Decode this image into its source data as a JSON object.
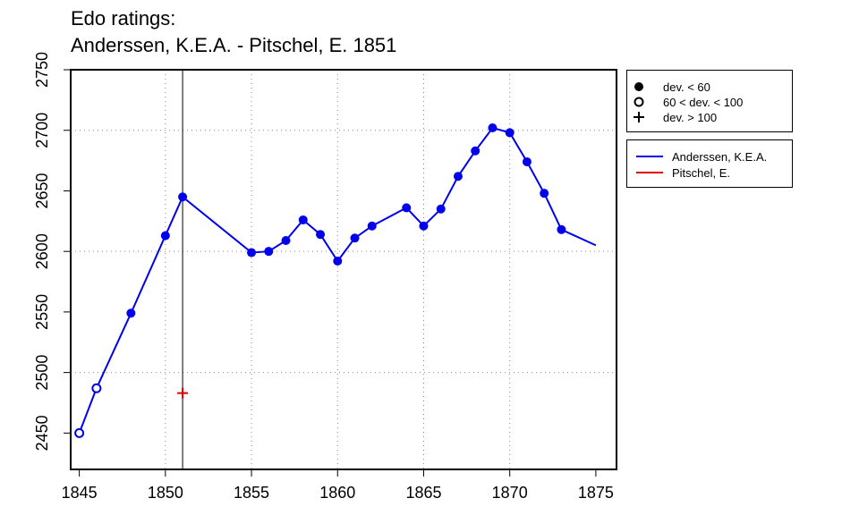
{
  "title_lines": [
    "Edo ratings:",
    "Anderssen, K.E.A. - Pitschel, E. 1851"
  ],
  "legend_markers": [
    {
      "symbol": "filled-circle",
      "label": "dev. < 60"
    },
    {
      "symbol": "open-circle",
      "label": "60 < dev. < 100"
    },
    {
      "symbol": "plus",
      "label": "dev. > 100"
    }
  ],
  "legend_players": [
    {
      "name": "Anderssen, K.E.A.",
      "color": "#0000ee"
    },
    {
      "name": "Pitschel, E.",
      "color": "#dd0000"
    }
  ],
  "chart_data": {
    "type": "line",
    "title": "Edo ratings:\nAnderssen, K.E.A. - Pitschel, E. 1851",
    "xlabel": "",
    "ylabel": "",
    "xlim": [
      1844.5,
      1876.2
    ],
    "ylim": [
      2420,
      2750
    ],
    "x_ticks": [
      1845,
      1850,
      1855,
      1860,
      1865,
      1870,
      1875
    ],
    "y_ticks": [
      2450,
      2500,
      2550,
      2600,
      2650,
      2700,
      2750
    ],
    "grid": true,
    "grid_x": [
      1850,
      1855,
      1860,
      1865,
      1870
    ],
    "grid_y": [
      2500,
      2600,
      2700
    ],
    "vertical_marker_year": 1851,
    "series": [
      {
        "name": "Anderssen, K.E.A.",
        "color": "#0000ee",
        "points": [
          {
            "x": 1845,
            "y": 2450,
            "marker": "open"
          },
          {
            "x": 1846,
            "y": 2487,
            "marker": "open"
          },
          {
            "x": 1848,
            "y": 2549,
            "marker": "filled"
          },
          {
            "x": 1850,
            "y": 2613,
            "marker": "filled"
          },
          {
            "x": 1851,
            "y": 2645,
            "marker": "filled"
          },
          {
            "x": 1855,
            "y": 2599,
            "marker": "filled"
          },
          {
            "x": 1856,
            "y": 2600,
            "marker": "filled"
          },
          {
            "x": 1857,
            "y": 2609,
            "marker": "filled"
          },
          {
            "x": 1858,
            "y": 2626,
            "marker": "filled"
          },
          {
            "x": 1859,
            "y": 2614,
            "marker": "filled"
          },
          {
            "x": 1860,
            "y": 2592,
            "marker": "filled"
          },
          {
            "x": 1861,
            "y": 2611,
            "marker": "filled"
          },
          {
            "x": 1862,
            "y": 2621,
            "marker": "filled"
          },
          {
            "x": 1864,
            "y": 2636,
            "marker": "filled"
          },
          {
            "x": 1865,
            "y": 2621,
            "marker": "filled"
          },
          {
            "x": 1866,
            "y": 2635,
            "marker": "filled"
          },
          {
            "x": 1867,
            "y": 2662,
            "marker": "filled"
          },
          {
            "x": 1868,
            "y": 2683,
            "marker": "filled"
          },
          {
            "x": 1869,
            "y": 2702,
            "marker": "filled"
          },
          {
            "x": 1870,
            "y": 2698,
            "marker": "filled"
          },
          {
            "x": 1871,
            "y": 2674,
            "marker": "filled"
          },
          {
            "x": 1872,
            "y": 2648,
            "marker": "filled"
          },
          {
            "x": 1873,
            "y": 2618,
            "marker": "filled"
          },
          {
            "x": 1875,
            "y": 2605,
            "marker": "none"
          }
        ]
      },
      {
        "name": "Pitschel, E.",
        "color": "#dd0000",
        "points": [
          {
            "x": 1851,
            "y": 2483,
            "marker": "plus"
          }
        ]
      }
    ]
  }
}
